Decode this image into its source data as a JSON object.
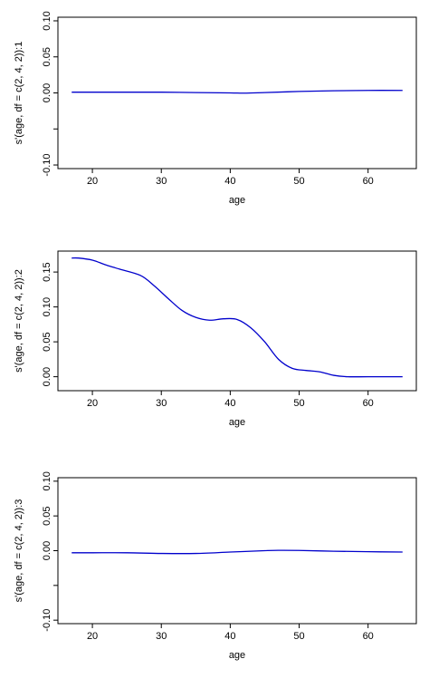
{
  "chart_data": [
    {
      "type": "line",
      "xlabel": "age",
      "ylabel": "s'(age, df = c(2, 4, 2)):1",
      "xlim": [
        15,
        67
      ],
      "ylim": [
        -0.105,
        0.105
      ],
      "xticks": [
        20,
        30,
        40,
        50,
        60
      ],
      "yticks": [
        -0.1,
        -0.05,
        0.0,
        0.05,
        0.1
      ],
      "ytick_labels": [
        "-0.10",
        "",
        "0.00",
        "0.05",
        "0.10"
      ],
      "grid": false,
      "series": [
        {
          "color": "#0000cc",
          "x": [
            17,
            20,
            25,
            30,
            35,
            40,
            42,
            45,
            50,
            55,
            60,
            65
          ],
          "y": [
            0.001,
            0.001,
            0.001,
            0.001,
            0.0005,
            0.0,
            -0.0003,
            0.0005,
            0.002,
            0.003,
            0.0035,
            0.0035
          ]
        }
      ]
    },
    {
      "type": "line",
      "xlabel": "age",
      "ylabel": "s'(age, df = c(2, 4, 2)):2",
      "xlim": [
        15,
        67
      ],
      "ylim": [
        -0.02,
        0.18
      ],
      "xticks": [
        20,
        30,
        40,
        50,
        60
      ],
      "yticks": [
        0.0,
        0.05,
        0.1,
        0.15
      ],
      "ytick_labels": [
        "0.00",
        "0.05",
        "0.10",
        "0.15"
      ],
      "grid": false,
      "series": [
        {
          "color": "#0000cc",
          "x": [
            17,
            18,
            20,
            22,
            24,
            27,
            29,
            31,
            33,
            35,
            37,
            39,
            41,
            43,
            45,
            47,
            49,
            51,
            53,
            55,
            57,
            60,
            65
          ],
          "y": [
            0.17,
            0.17,
            0.167,
            0.16,
            0.154,
            0.145,
            0.13,
            0.112,
            0.095,
            0.085,
            0.081,
            0.083,
            0.082,
            0.07,
            0.05,
            0.025,
            0.012,
            0.009,
            0.007,
            0.002,
            0.0,
            0.0,
            0.0
          ]
        }
      ]
    },
    {
      "type": "line",
      "xlabel": "age",
      "ylabel": "s'(age, df = c(2, 4, 2)):3",
      "xlim": [
        15,
        67
      ],
      "ylim": [
        -0.105,
        0.105
      ],
      "xticks": [
        20,
        30,
        40,
        50,
        60
      ],
      "yticks": [
        -0.1,
        -0.05,
        0.0,
        0.05,
        0.1
      ],
      "ytick_labels": [
        "-0.10",
        "",
        "0.00",
        "0.05",
        "0.10"
      ],
      "grid": false,
      "series": [
        {
          "color": "#0000cc",
          "x": [
            17,
            20,
            25,
            30,
            35,
            40,
            45,
            47,
            50,
            55,
            60,
            65
          ],
          "y": [
            -0.003,
            -0.003,
            -0.003,
            -0.004,
            -0.004,
            -0.002,
            0.0,
            0.0005,
            0.0003,
            -0.0008,
            -0.0015,
            -0.002
          ]
        }
      ]
    }
  ]
}
